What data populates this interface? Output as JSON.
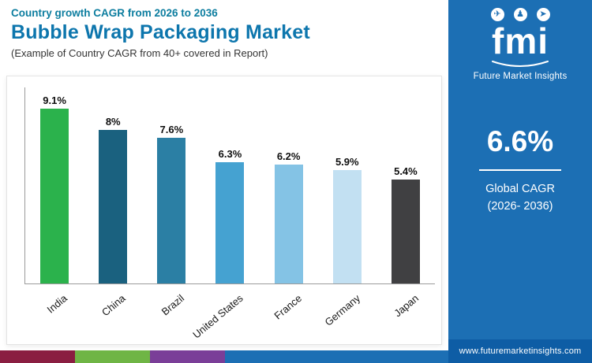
{
  "header": {
    "eyebrow": "Country growth CAGR from 2026 to 2036",
    "title": "Bubble Wrap Packaging Market",
    "subtitle": "(Example of Country CAGR from 40+ covered in Report)"
  },
  "sidebar": {
    "logo_text": "fmi",
    "logo_caption": "Future Market Insights",
    "stat_value": "6.6%",
    "stat_label_line1": "Global CAGR",
    "stat_label_line2": "(2026- 2036)",
    "website": "www.futuremarketinsights.com",
    "colors": {
      "panel": "#1c6fb4",
      "footer": "#0e5da5"
    }
  },
  "chart_data": {
    "type": "bar",
    "title": "Bubble Wrap Packaging Market",
    "subtitle": "Country growth CAGR from 2026 to 2036",
    "categories": [
      "India",
      "China",
      "Brazil",
      "United States",
      "France",
      "Germany",
      "Japan"
    ],
    "values": [
      9.1,
      8,
      7.6,
      6.3,
      6.2,
      5.9,
      5.4
    ],
    "value_labels": [
      "9.1%",
      "8%",
      "7.6%",
      "6.3%",
      "6.2%",
      "5.9%",
      "5.4%"
    ],
    "bar_colors": [
      "#2bb24c",
      "#1a617f",
      "#2b7fa4",
      "#45a2d1",
      "#84c3e5",
      "#c2e0f2",
      "#404042"
    ],
    "xlabel": "",
    "ylabel": "",
    "ylim": [
      0,
      10
    ],
    "grid": false,
    "legend": "none"
  },
  "footer_strip": {
    "colors": [
      "#8a1e41",
      "#6fb545",
      "#7a3e98",
      "#1c6fb4"
    ]
  }
}
